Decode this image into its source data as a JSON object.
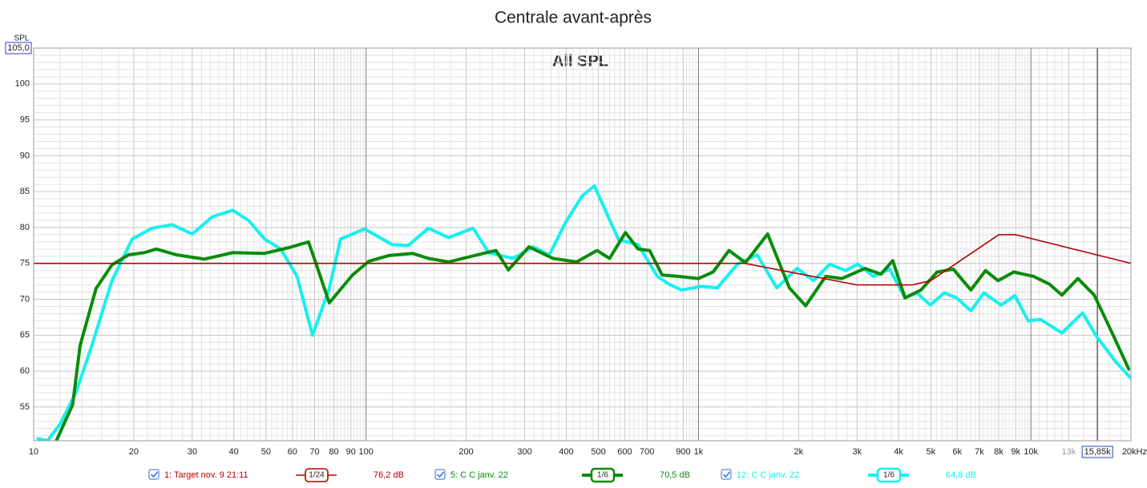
{
  "chart_data": {
    "type": "line",
    "title": "Centrale avant-après",
    "subtitle": "All SPL",
    "y_label": "SPL",
    "xscale": "log",
    "grid": true,
    "xlim": [
      10,
      20000
    ],
    "ylim": [
      50.3,
      105
    ],
    "xticks": [
      10,
      20,
      30,
      40,
      50,
      60,
      70,
      80,
      90,
      100,
      200,
      300,
      400,
      500,
      600,
      700,
      900,
      {
        "value": 1000,
        "label": "1k"
      },
      {
        "value": 2000,
        "label": "2k"
      },
      {
        "value": 3000,
        "label": "3k"
      },
      {
        "value": 4000,
        "label": "4k"
      },
      {
        "value": 5000,
        "label": "5k"
      },
      {
        "value": 6000,
        "label": "6k"
      },
      {
        "value": 7000,
        "label": "7k"
      },
      {
        "value": 8000,
        "label": "8k"
      },
      {
        "value": 9000,
        "label": "9k"
      },
      {
        "value": 10000,
        "label": "10k"
      },
      {
        "value": 13000,
        "label": "13k"
      },
      {
        "value": 20000,
        "label": "20kHz"
      }
    ],
    "yticks": [
      55,
      60,
      65,
      70,
      75,
      80,
      85,
      90,
      95,
      100,
      {
        "value": 105,
        "label": "105,0"
      }
    ],
    "cursor_x": {
      "value": 15850,
      "label": "15,85k"
    },
    "series": [
      {
        "name": "1: Target nov. 9 21:11",
        "smoothing": "1/24",
        "level": "76,2 dB",
        "color": "#b40000",
        "width": 1.6,
        "x": [
          10,
          1380,
          3000,
          4400,
          5000,
          8000,
          9000,
          20000
        ],
        "values": [
          75,
          75,
          72,
          72,
          72.6,
          79,
          79,
          75
        ]
      },
      {
        "name": "5: C C janv. 22",
        "smoothing": "1/6",
        "level": "70,5 dB",
        "color": "#0a8c0a",
        "width": 4,
        "x": [
          11.7,
          13.1,
          13.8,
          15.4,
          17.2,
          19.3,
          21.5,
          23.4,
          26.9,
          32.6,
          39.7,
          49.5,
          58.6,
          67.1,
          70.9,
          77.5,
          83.8,
          91.1,
          101.9,
          117,
          138,
          154,
          177,
          221,
          246,
          268,
          309,
          365,
          430,
          495,
          540,
          603,
          658,
          713,
          777,
          868,
          1000,
          1106,
          1235,
          1385,
          1614,
          1877,
          2100,
          2415,
          2700,
          3170,
          3540,
          3840,
          4180,
          4670,
          5220,
          5845,
          6600,
          7300,
          7960,
          8880,
          10190,
          11380,
          12400,
          13850,
          15500,
          17320,
          19690
        ],
        "values": [
          50.3,
          55.3,
          63.6,
          71.5,
          74.8,
          76.2,
          76.5,
          77,
          76.2,
          75.6,
          76.5,
          76.4,
          77.2,
          78,
          74.8,
          69.5,
          71.4,
          73.4,
          75.3,
          76.1,
          76.4,
          75.7,
          75.2,
          76.3,
          76.8,
          74.1,
          77.3,
          75.7,
          75.2,
          76.8,
          75.7,
          79.3,
          77,
          76.8,
          73.4,
          73.2,
          72.9,
          73.8,
          76.8,
          75.1,
          79.1,
          71.6,
          69.1,
          73.2,
          72.9,
          74.3,
          73.5,
          75.4,
          70.2,
          71.3,
          73.8,
          74.2,
          71.3,
          74,
          72.6,
          73.8,
          73.2,
          72.1,
          70.6,
          72.9,
          70.6,
          65.9,
          60.3
        ]
      },
      {
        "name": "12: C C janv. 22",
        "smoothing": "1/6",
        "level": "64,8 dB",
        "color": "#16f0f0",
        "width": 4,
        "x": [
          10.3,
          11,
          12,
          13.4,
          15,
          17.2,
          19.8,
          22.7,
          26.1,
          30,
          34.5,
          39.7,
          44.3,
          49.5,
          55.4,
          62,
          69,
          77.5,
          83.8,
          99,
          120,
          134,
          154,
          177,
          210,
          234,
          277,
          318,
          356,
          398,
          447,
          486,
          575,
          658,
          752,
          815,
          890,
          1020,
          1140,
          1310,
          1500,
          1720,
          1980,
          2220,
          2480,
          2770,
          3010,
          3360,
          3760,
          4180,
          4540,
          4980,
          5490,
          5980,
          6600,
          7220,
          8140,
          8950,
          9820,
          10680,
          12400,
          14300,
          15780,
          17920,
          20000
        ],
        "values": [
          50.6,
          50.3,
          52.6,
          57,
          63.7,
          72.6,
          78.4,
          79.9,
          80.4,
          79.1,
          81.5,
          82.4,
          81,
          78.4,
          77,
          73.2,
          65,
          71.5,
          78.4,
          79.8,
          77.6,
          77.5,
          79.9,
          78.6,
          79.9,
          76.5,
          75.7,
          77.3,
          76.2,
          80.7,
          84.4,
          85.8,
          78.3,
          77.6,
          73.2,
          72.1,
          71.3,
          71.8,
          71.6,
          74.9,
          76.2,
          71.6,
          74.3,
          72.6,
          74.9,
          74,
          74.9,
          73.2,
          74.2,
          70.2,
          70.9,
          69.2,
          70.9,
          70.2,
          68.4,
          70.9,
          69.2,
          70.5,
          67,
          67.2,
          65.3,
          68.1,
          64.8,
          61.4,
          59
        ]
      }
    ]
  }
}
